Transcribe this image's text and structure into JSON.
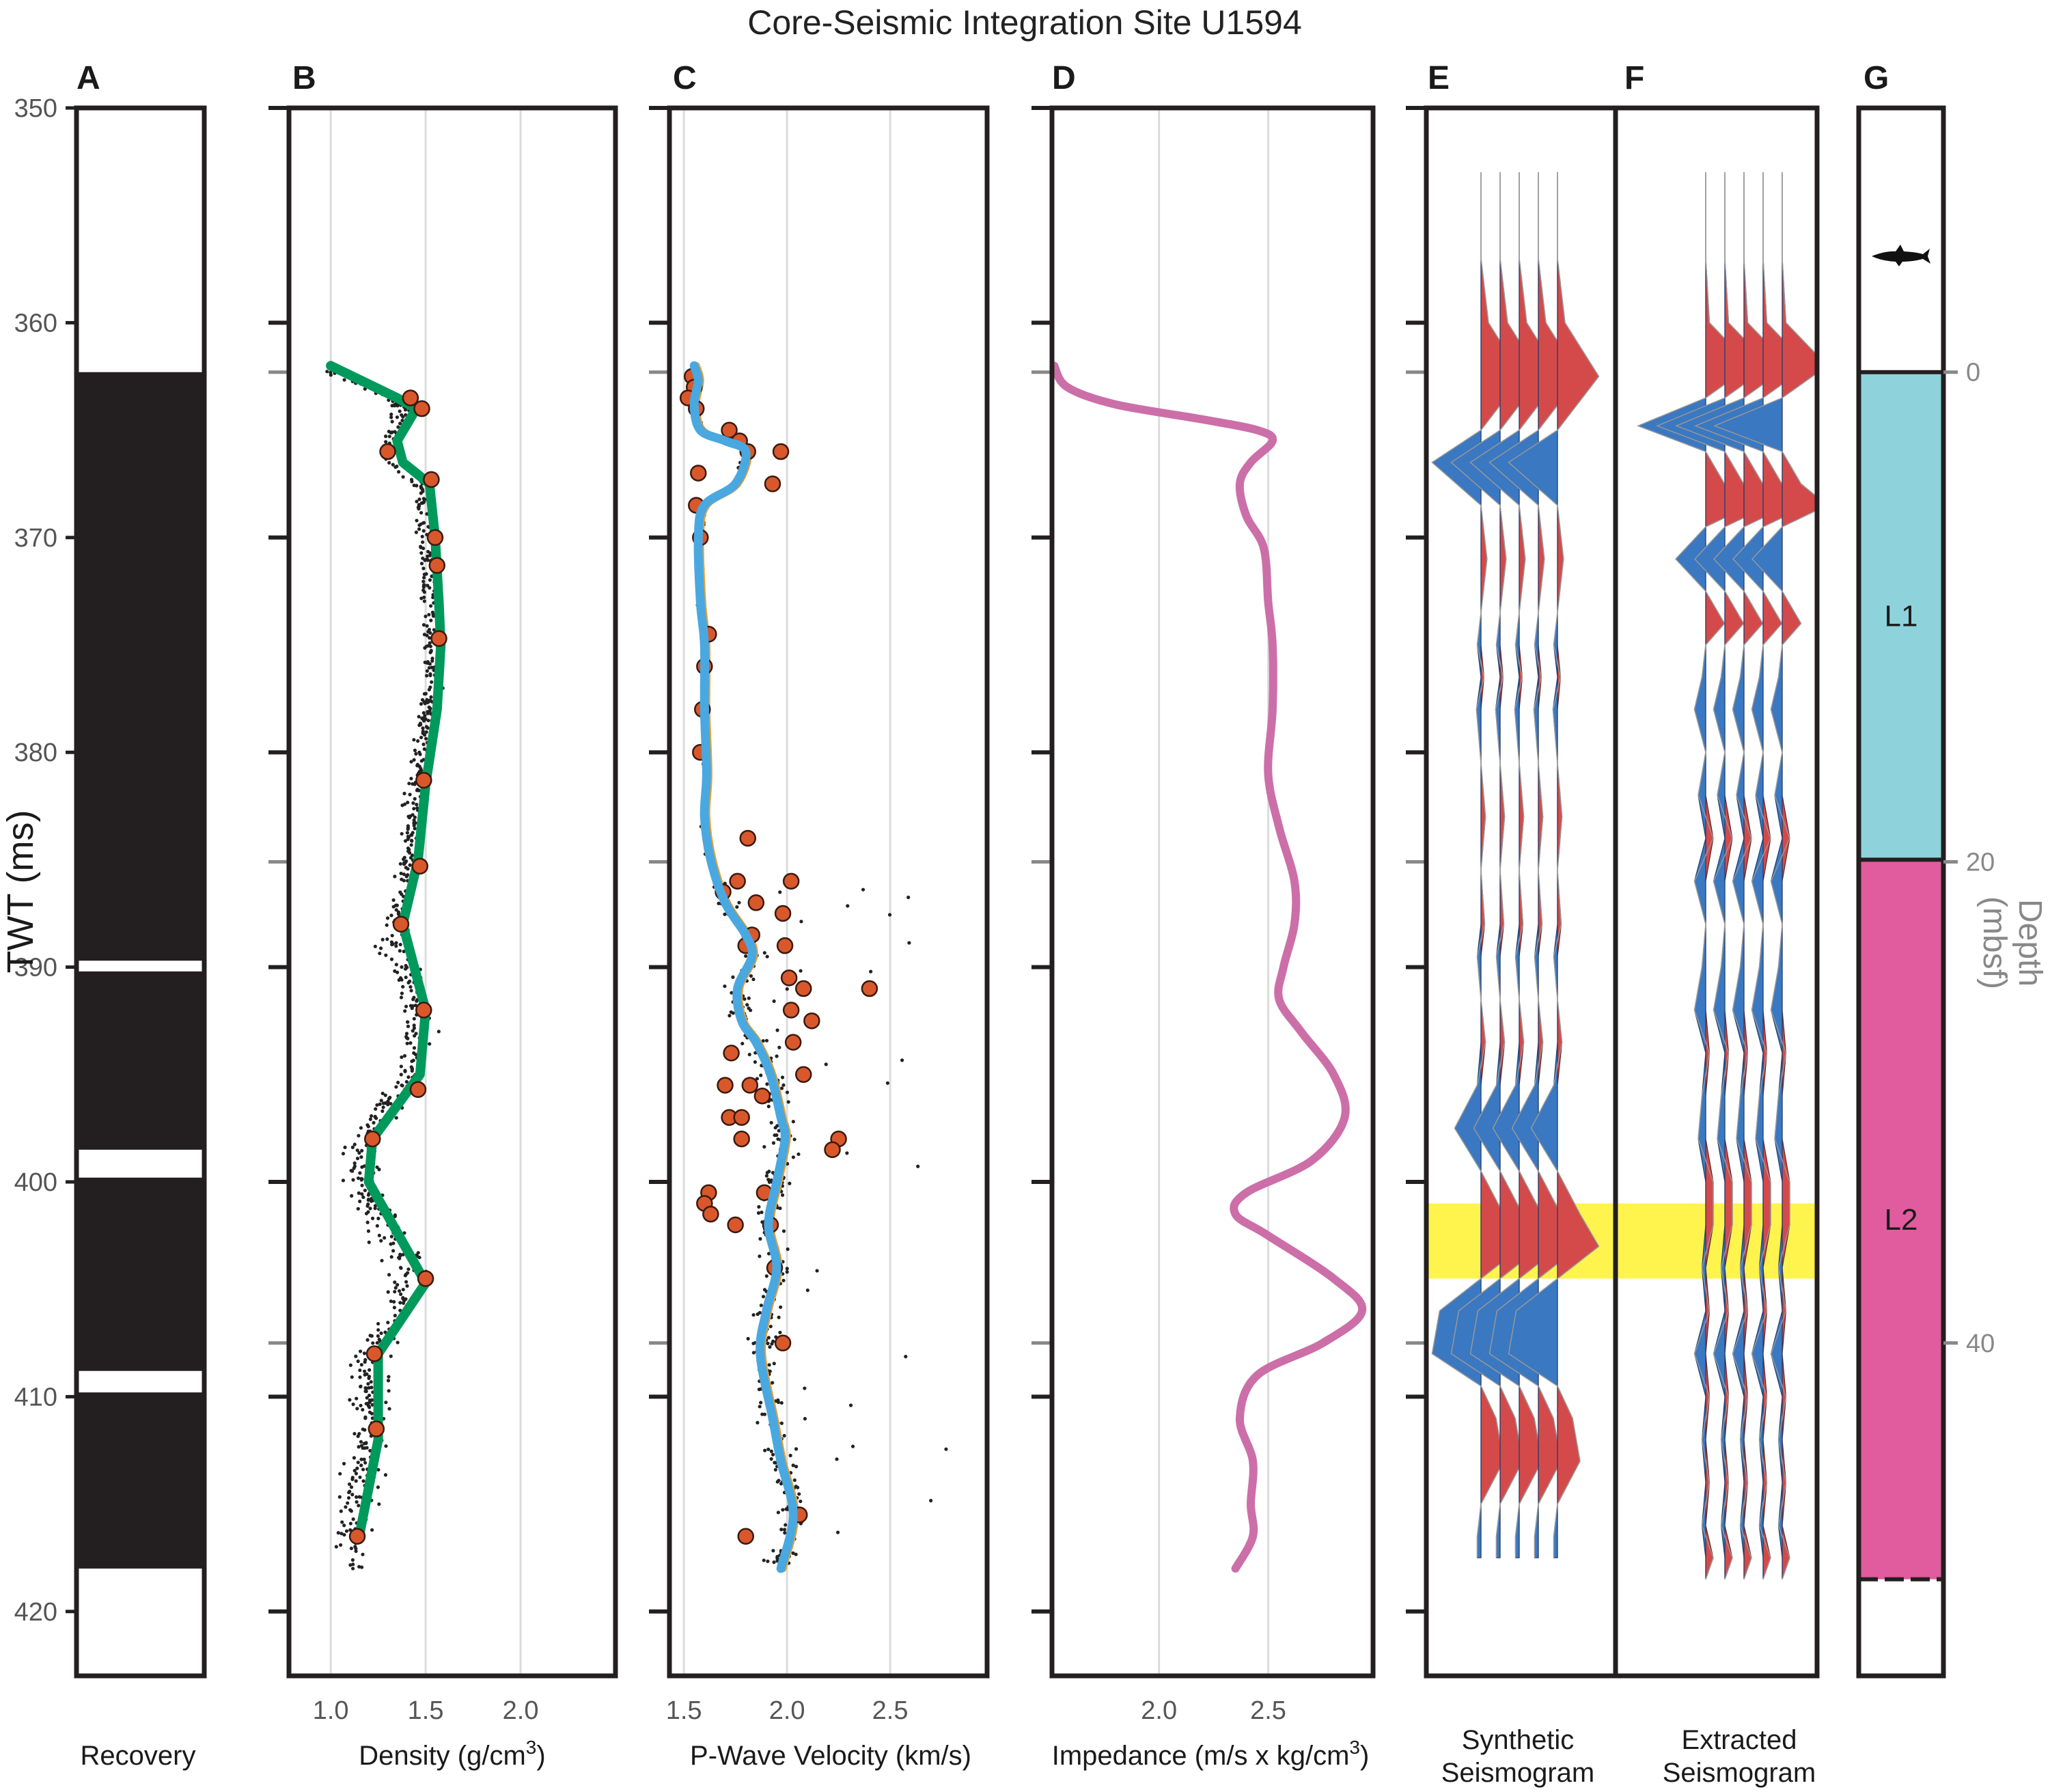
{
  "title": "Core-Seismic Integration Site U1594",
  "y_axis": {
    "label": "TWT (ms)",
    "ticks": [
      "350",
      "360",
      "370",
      "380",
      "390",
      "400",
      "410",
      "420"
    ],
    "range": [
      350,
      423
    ]
  },
  "depth_axis": {
    "label": "Depth",
    "unit": "(mbsf)",
    "ticks": [
      "0",
      "20",
      "40"
    ]
  },
  "panels": {
    "A": {
      "letter": "A",
      "label": "Recovery"
    },
    "B": {
      "letter": "B",
      "label": "Density (g/cm",
      "label_sup": "3",
      "label_end": ")",
      "ticks": [
        "1.0",
        "1.5",
        "2.0"
      ]
    },
    "C": {
      "letter": "C",
      "label": "P-Wave Velocity (km/s)",
      "ticks": [
        "1.5",
        "2.0",
        "2.5"
      ]
    },
    "D": {
      "letter": "D",
      "label": "Impedance (m/s x kg/cm",
      "label_sup": "3",
      "label_end": ")",
      "ticks": [
        "2.0",
        "2.5"
      ]
    },
    "E": {
      "letter": "E",
      "label_line1": "Synthetic",
      "label_line2": "Seismogram"
    },
    "F": {
      "letter": "F",
      "label_line1": "Extracted",
      "label_line2": "Seismogram"
    },
    "G": {
      "letter": "G",
      "units": [
        "L1",
        "L2"
      ]
    }
  },
  "colors": {
    "core": "#231f20",
    "density_line": "#00995c",
    "velocity_line": "#4aa8e0",
    "velocity_line_under": "#e8a030",
    "discrete_points": "#d9582b",
    "impedance_line": "#cc6fa8",
    "positive_wiggle": "#d44a4a",
    "negative_wiggle": "#3a78c2",
    "highlight": "#fff34d",
    "unit_L1": "#8ed3dc",
    "unit_L2": "#e05c9e"
  },
  "chart_data": [
    {
      "panel": "A",
      "type": "table",
      "description_of_values": "core recovery intervals in TWT (ms)",
      "recovered_intervals": [
        [
          362.3,
          389.7
        ],
        [
          390.2,
          398.5
        ],
        [
          399.8,
          408.8
        ],
        [
          409.8,
          418.0
        ]
      ]
    },
    {
      "panel": "B",
      "type": "line",
      "xlabel": "Density (g/cm3)",
      "xlim": [
        0.78,
        2.5
      ],
      "ylim": [
        350,
        423
      ],
      "series": [
        {
          "x": [
            1.0,
            1.35,
            1.45,
            1.35,
            1.38,
            1.52,
            1.55,
            1.57,
            1.58,
            1.56,
            1.5,
            1.46,
            1.38,
            1.5,
            1.47,
            1.22,
            1.2,
            1.5,
            1.25,
            1.25,
            1.15
          ],
          "y": [
            362.0,
            363.5,
            364.0,
            365.5,
            366.5,
            367.5,
            370.0,
            373.0,
            375.0,
            378.0,
            381.5,
            385.0,
            388.0,
            392.0,
            395.0,
            398.0,
            400.0,
            404.7,
            408.0,
            412.0,
            416.5
          ]
        }
      ],
      "discrete_points": {
        "x": [
          1.42,
          1.48,
          1.3,
          1.53,
          1.55,
          1.56,
          1.57,
          1.49,
          1.47,
          1.37,
          1.49,
          1.46,
          1.22,
          1.5,
          1.23,
          1.24,
          1.14
        ],
        "y": [
          363.5,
          364.0,
          366.0,
          367.3,
          370.0,
          371.3,
          374.7,
          381.3,
          385.3,
          388.0,
          392.0,
          395.7,
          398.0,
          404.5,
          408.0,
          411.5,
          416.5
        ]
      }
    },
    {
      "panel": "C",
      "type": "line",
      "xlabel": "P-Wave Velocity (km/s)",
      "xlim": [
        1.43,
        2.97
      ],
      "ylim": [
        350,
        423
      ],
      "series": [
        {
          "x": [
            1.55,
            1.57,
            1.55,
            1.58,
            1.7,
            1.8,
            1.75,
            1.6,
            1.57,
            1.58,
            1.6,
            1.6,
            1.61,
            1.6,
            1.63,
            1.7,
            1.8,
            1.83,
            1.76,
            1.78,
            1.85,
            1.92,
            1.97,
            1.99,
            1.95,
            1.91,
            1.95,
            1.9,
            1.87,
            1.93,
            1.97,
            2.03,
            1.97
          ],
          "y": [
            362.0,
            362.7,
            363.8,
            365.0,
            365.5,
            366.0,
            367.5,
            368.5,
            370.0,
            373.0,
            375.0,
            378.0,
            381.0,
            383.0,
            385.0,
            387.0,
            388.5,
            389.5,
            391.0,
            392.5,
            393.5,
            395.0,
            397.0,
            398.0,
            400.0,
            402.0,
            404.0,
            406.0,
            408.0,
            411.0,
            413.0,
            415.5,
            418.0
          ]
        }
      ],
      "discrete_points": {
        "x": [
          1.54,
          1.55,
          1.52,
          1.56,
          1.72,
          1.77,
          1.81,
          1.97,
          1.93,
          1.57,
          1.56,
          1.58,
          1.62,
          1.6,
          1.59,
          1.58,
          1.81,
          1.76,
          1.85,
          1.69,
          1.8,
          2.02,
          1.98,
          1.99,
          1.83,
          2.01,
          2.08,
          2.02,
          2.4,
          2.12,
          2.03,
          2.08,
          1.73,
          1.7,
          1.82,
          1.88,
          1.72,
          1.78,
          1.78,
          2.25,
          2.22,
          1.62,
          1.6,
          1.63,
          1.75,
          1.89,
          1.92,
          1.94,
          1.98,
          2.06,
          1.8
        ],
        "y": [
          362.5,
          363.0,
          363.5,
          364.0,
          365.0,
          365.5,
          366.0,
          366.0,
          367.5,
          367.0,
          368.5,
          370.0,
          374.5,
          376.0,
          378.0,
          380.0,
          384.0,
          386.0,
          387.0,
          386.5,
          389.0,
          386.0,
          387.5,
          389.0,
          388.5,
          390.5,
          391.0,
          392.0,
          391.0,
          392.5,
          393.5,
          395.0,
          394.0,
          395.5,
          395.5,
          396.0,
          397.0,
          397.0,
          398.0,
          398.0,
          398.5,
          400.5,
          401.0,
          401.5,
          402.0,
          400.5,
          402.0,
          404.0,
          407.5,
          415.5,
          416.5
        ]
      }
    },
    {
      "panel": "D",
      "type": "line",
      "xlabel": "Impedance (m/s x kg/cm3)",
      "xlim": [
        1.51,
        2.98
      ],
      "ylim": [
        350,
        423
      ],
      "series": [
        {
          "x": [
            1.52,
            1.58,
            1.8,
            2.2,
            2.45,
            2.52,
            2.42,
            2.37,
            2.4,
            2.48,
            2.5,
            2.52,
            2.52,
            2.5,
            2.55,
            2.62,
            2.62,
            2.57,
            2.55,
            2.65,
            2.8,
            2.85,
            2.7,
            2.4,
            2.35,
            2.5,
            2.8,
            2.93,
            2.75,
            2.45,
            2.37,
            2.43,
            2.42,
            2.43,
            2.35
          ],
          "y": [
            362.0,
            363.0,
            363.8,
            364.5,
            365.0,
            365.5,
            366.5,
            367.5,
            369.0,
            370.5,
            373.0,
            375.0,
            378.0,
            381.0,
            383.5,
            386.0,
            388.0,
            390.0,
            391.5,
            393.0,
            395.0,
            397.0,
            399.0,
            400.5,
            401.5,
            402.5,
            404.5,
            406.0,
            407.5,
            409.0,
            411.0,
            413.0,
            415.0,
            416.5,
            418.0
          ]
        }
      ]
    },
    {
      "panel": "E",
      "type": "line",
      "description_of_values": "synthetic seismogram wiggle trace (relative amplitude)",
      "series": [
        {
          "y": [
            353.0,
            357.0,
            360.0,
            362.5,
            365.0,
            366.5,
            368.5,
            371.0,
            373.5,
            375.0,
            376.5,
            378.0,
            380.5,
            383.0,
            385.5,
            388.0,
            389.5,
            391.5,
            393.5,
            395.5,
            397.5,
            399.5,
            401.5,
            403.0,
            404.5,
            406.0,
            408.0,
            409.5,
            411.0,
            413.0,
            415.0,
            416.5,
            417.5
          ],
          "amp": [
            0.0,
            0.0,
            0.1,
            0.55,
            0.0,
            -0.65,
            0.0,
            0.08,
            0.0,
            -0.05,
            0.04,
            -0.06,
            0.0,
            0.06,
            0.0,
            0.05,
            -0.05,
            0.0,
            0.06,
            -0.05,
            -0.35,
            0.0,
            0.3,
            0.55,
            0.0,
            -0.55,
            -0.65,
            0.0,
            0.2,
            0.3,
            0.0,
            -0.05,
            -0.05
          ]
        }
      ]
    },
    {
      "panel": "F",
      "type": "line",
      "description_of_values": "extracted seismogram wiggle trace (relative amplitude)",
      "series": [
        {
          "y": [
            353.0,
            357.0,
            360.0,
            362.0,
            363.5,
            364.8,
            366.0,
            367.5,
            368.5,
            369.5,
            371.0,
            372.5,
            374.0,
            375.0,
            376.5,
            378.0,
            380.0,
            382.0,
            384.0,
            386.0,
            388.0,
            390.0,
            392.0,
            394.0,
            396.0,
            398.0,
            400.0,
            402.0,
            404.0,
            406.0,
            408.0,
            410.0,
            412.0,
            414.0,
            416.0,
            417.5,
            418.5
          ],
          "amp": [
            0.0,
            0.0,
            0.05,
            0.6,
            0.0,
            -0.9,
            0.0,
            0.25,
            0.6,
            0.0,
            -0.4,
            0.0,
            0.25,
            0.0,
            -0.05,
            -0.15,
            0.0,
            -0.1,
            0.1,
            -0.15,
            0.0,
            -0.05,
            -0.15,
            0.05,
            -0.05,
            -0.1,
            0.1,
            0.1,
            -0.05,
            0.05,
            -0.15,
            0.05,
            -0.05,
            0.05,
            -0.05,
            0.1,
            0.0
          ]
        }
      ],
      "highlight_band": [
        401.0,
        404.5
      ]
    },
    {
      "panel": "G",
      "type": "table",
      "units": [
        {
          "name": "L1",
          "top_twt": 362.3,
          "bottom_twt": 385.0
        },
        {
          "name": "L2",
          "top_twt": 385.0,
          "bottom_twt": 418.5
        }
      ]
    }
  ]
}
